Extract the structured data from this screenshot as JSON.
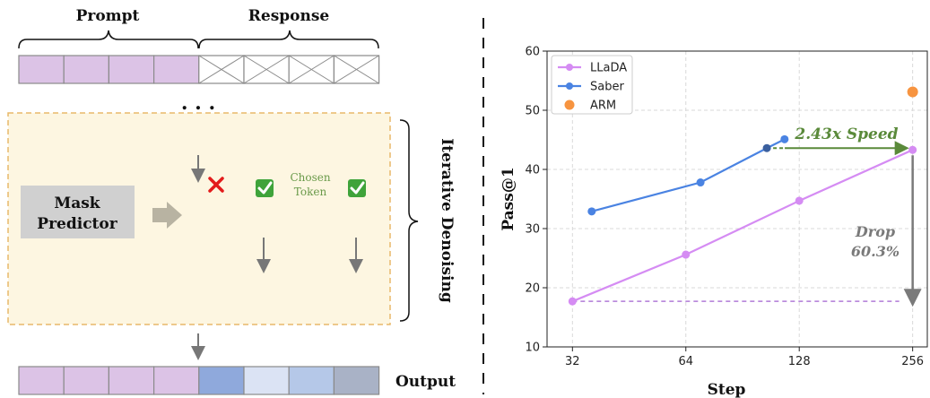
{
  "diagram": {
    "prompt_label": "Prompt",
    "response_label": "Response",
    "ellipsis": ". . .",
    "mask_predictor_line1": "Mask",
    "mask_predictor_line2": "Predictor",
    "chosen_line1": "Chosen",
    "chosen_line2": "Token",
    "iterative_label": "Iterative Denoising",
    "output_label": "Output",
    "colors": {
      "prompt": "#dcc3e6",
      "masked": "#ffffff",
      "dark_blue": "#8fa9dc",
      "light_blue": "#dbe3f4",
      "mid_blue": "#b5c8e8",
      "slate": "#a9b2c6",
      "panel_bg": "#fdf6e1",
      "panel_border": "#e8b96a",
      "mask_box": "#d0d0d0",
      "reject": "#e31b1b",
      "accept": "#3fa33a"
    }
  },
  "chart_data": {
    "type": "line",
    "xlabel": "Step",
    "ylabel": "Pass@1",
    "xscale": "log2",
    "xticks": [
      32,
      64,
      128,
      256
    ],
    "yticks": [
      10,
      20,
      30,
      40,
      50,
      60
    ],
    "ylim": [
      10,
      60
    ],
    "grid": true,
    "legend_position": "top-left",
    "series": [
      {
        "name": "LLaDA",
        "color": "#d58cf3",
        "x": [
          32,
          64,
          128,
          256
        ],
        "y": [
          17.7,
          25.6,
          34.7,
          43.3
        ]
      },
      {
        "name": "Saber",
        "color": "#4a83e2",
        "x": [
          36,
          70,
          105,
          117
        ],
        "y": [
          32.9,
          37.8,
          43.6,
          45.1
        ]
      },
      {
        "name": "ARM",
        "color": "#f79440",
        "x": [
          256
        ],
        "y": [
          53.1
        ],
        "marker_only": true
      }
    ],
    "annotations": {
      "speed_text": "2.43x Speed",
      "drop_line1": "Drop",
      "drop_line2": "60.3%",
      "speed_color": "#5a8a3a",
      "drop_color": "#7a7a7a",
      "dashed_color": "#b07ad8"
    }
  }
}
